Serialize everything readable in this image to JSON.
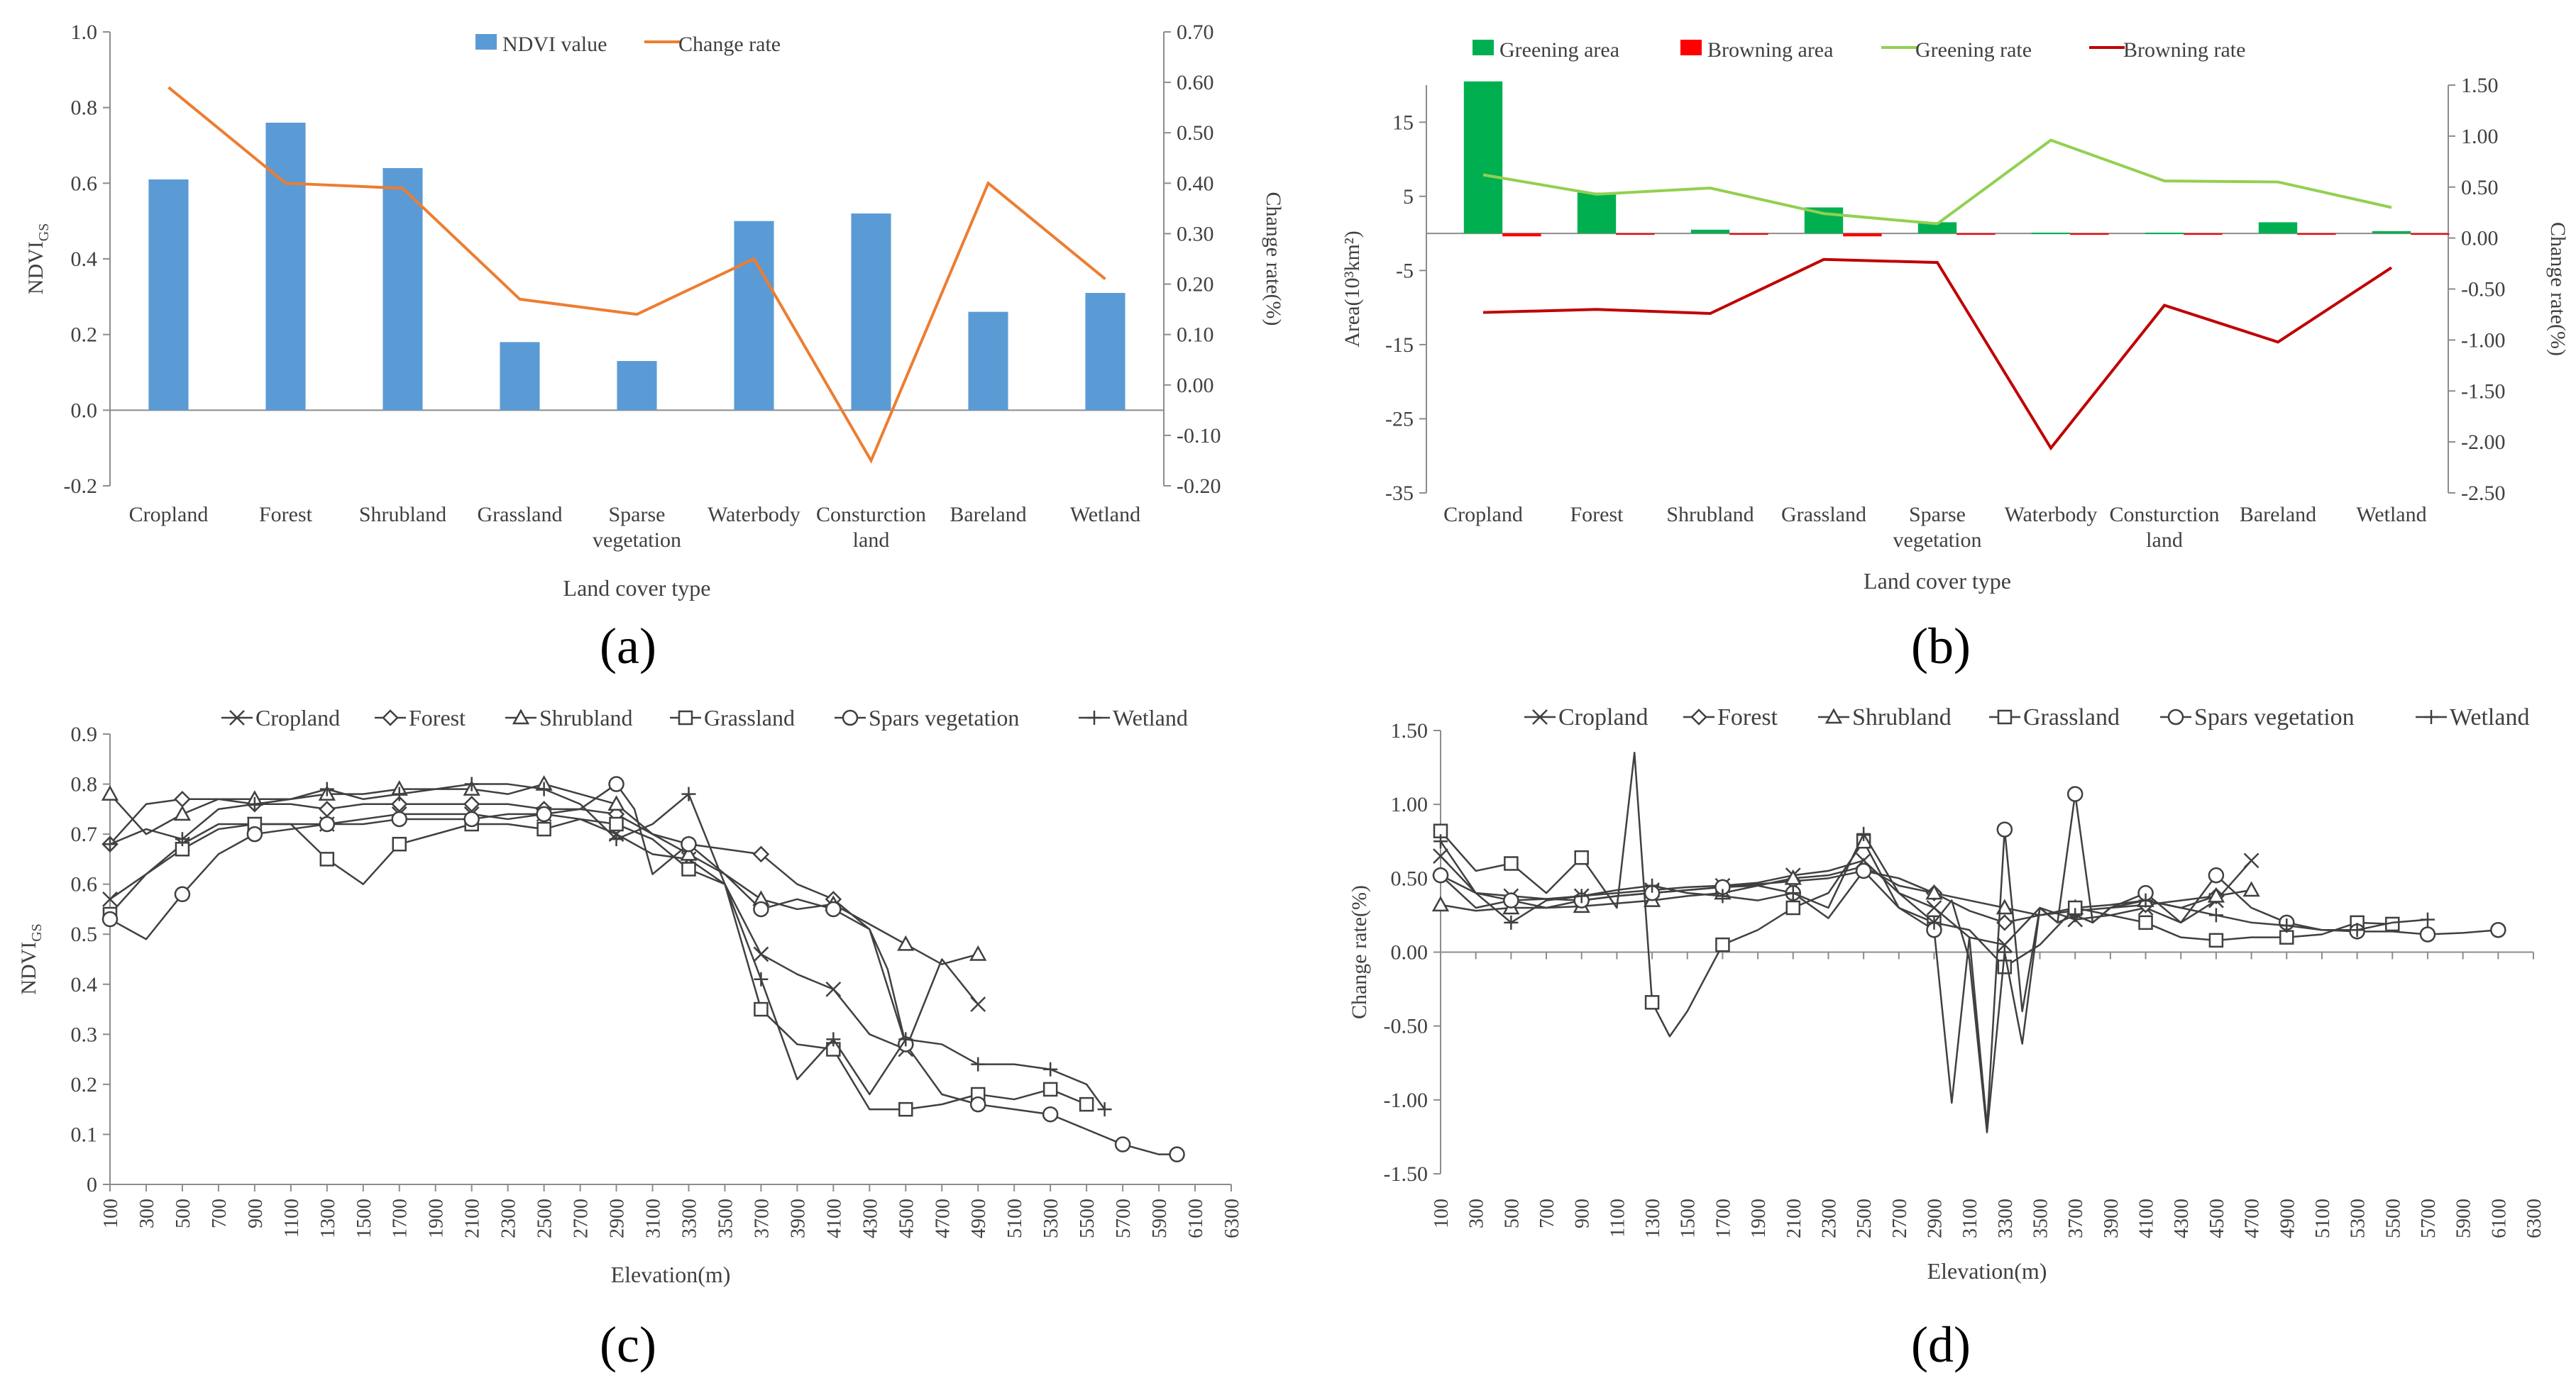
{
  "panel_labels": [
    "(a)",
    "(b)",
    "(c)",
    "(d)"
  ],
  "chart_data": [
    {
      "id": "a",
      "type": "bar",
      "xlabel": "Land cover type",
      "ylabel": "NDVI",
      "ylabel_sub": "GS",
      "y2label": "Change rate(%)",
      "categories": [
        "Cropland",
        "Forest",
        "Shrubland",
        "Grassland",
        "Sparse vegetation",
        "Waterbody",
        "Consturction land",
        "Bareland",
        "Wetland"
      ],
      "ylim": [
        -0.2,
        1.0
      ],
      "yticks": [
        "-0.2",
        "0.0",
        "0.2",
        "0.4",
        "0.6",
        "0.8",
        "1.0"
      ],
      "y2lim": [
        -0.2,
        0.7
      ],
      "y2ticks": [
        "-0.20",
        "-0.10",
        "0.00",
        "0.10",
        "0.20",
        "0.30",
        "0.40",
        "0.50",
        "0.60",
        "0.70"
      ],
      "legend_position": "top",
      "series": [
        {
          "name": "NDVI value",
          "kind": "bar",
          "axis": "left",
          "color": "#5b9bd5",
          "values": [
            0.61,
            0.76,
            0.64,
            0.18,
            0.13,
            0.5,
            0.52,
            0.26,
            0.31
          ]
        },
        {
          "name": "Change rate",
          "kind": "line",
          "axis": "right",
          "color": "#ed7d31",
          "values": [
            0.59,
            0.4,
            0.39,
            0.17,
            0.14,
            0.25,
            -0.15,
            0.4,
            0.21
          ]
        }
      ]
    },
    {
      "id": "b",
      "type": "bar",
      "xlabel": "Land cover type",
      "ylabel": "Area(10³km²)",
      "y2label": "Change rate(%)",
      "categories": [
        "Cropland",
        "Forest",
        "Shrubland",
        "Grassland",
        "Sparse vegetation",
        "Waterbody",
        "Consturction land",
        "Bareland",
        "Wetland"
      ],
      "ylim": [
        -35,
        20
      ],
      "yticks": [
        "-35",
        "-25",
        "-15",
        "-5",
        "5",
        "15"
      ],
      "y2lim": [
        -2.5,
        1.5
      ],
      "y2ticks": [
        "-2.50",
        "-2.00",
        "-1.50",
        "-1.00",
        "-0.50",
        "0.00",
        "0.50",
        "1.00",
        "1.50"
      ],
      "legend_position": "top",
      "series": [
        {
          "name": "Greening area",
          "kind": "bar",
          "axis": "left",
          "color": "#00b050",
          "values": [
            20.5,
            5.5,
            0.5,
            3.5,
            1.5,
            0.1,
            0.1,
            1.5,
            0.3
          ]
        },
        {
          "name": "Browning area",
          "kind": "bar",
          "axis": "left",
          "color": "#ff0000",
          "values": [
            -0.4,
            -0.1,
            -0.1,
            -0.4,
            -0.1,
            -0.1,
            -0.05,
            -0.05,
            -0.05
          ]
        },
        {
          "name": "Greening rate",
          "kind": "line",
          "axis": "right",
          "color": "#92d050",
          "values": [
            0.62,
            0.43,
            0.49,
            0.24,
            0.14,
            0.96,
            0.56,
            0.55,
            0.3
          ]
        },
        {
          "name": "Browning rate",
          "kind": "line",
          "axis": "right",
          "color": "#c00000",
          "values": [
            -0.73,
            -0.7,
            -0.74,
            -0.21,
            -0.24,
            -2.06,
            -0.66,
            -1.02,
            -0.29
          ]
        }
      ]
    },
    {
      "id": "c",
      "type": "line",
      "xlabel": "Elevation(m)",
      "ylabel": "NDVI",
      "ylabel_sub": "GS",
      "xlim": [
        100,
        6300
      ],
      "xticks": [
        "100",
        "300",
        "500",
        "700",
        "900",
        "1100",
        "1300",
        "1500",
        "1700",
        "1900",
        "2100",
        "2300",
        "2500",
        "2700",
        "2900",
        "3100",
        "3300",
        "3500",
        "3700",
        "3900",
        "4100",
        "4300",
        "4500",
        "4700",
        "4900",
        "5100",
        "5300",
        "5500",
        "5700",
        "5900",
        "6100",
        "6300"
      ],
      "ylim": [
        0,
        0.9
      ],
      "yticks": [
        "0",
        "0.1",
        "0.2",
        "0.3",
        "0.4",
        "0.5",
        "0.6",
        "0.7",
        "0.8",
        "0.9"
      ],
      "legend_position": "top",
      "marker_every": 400,
      "series": [
        {
          "name": "Cropland",
          "marker": "x",
          "x": [
            100,
            300,
            500,
            700,
            900,
            1100,
            1300,
            1500,
            1700,
            1900,
            2100,
            2300,
            2500,
            2700,
            2900,
            3100,
            3300,
            3500,
            3700,
            3900,
            4100,
            4300,
            4500,
            4700,
            4900
          ],
          "y": [
            0.57,
            0.62,
            0.68,
            0.72,
            0.72,
            0.72,
            0.72,
            0.73,
            0.74,
            0.74,
            0.74,
            0.73,
            0.74,
            0.73,
            0.7,
            0.66,
            0.65,
            0.6,
            0.46,
            0.42,
            0.39,
            0.3,
            0.27,
            0.45,
            0.36
          ]
        },
        {
          "name": "Forest",
          "marker": "diamond",
          "x": [
            100,
            300,
            500,
            700,
            900,
            1100,
            1300,
            1500,
            1700,
            1900,
            2100,
            2300,
            2500,
            2700,
            2900,
            3100,
            3300,
            3500,
            3700,
            3900,
            4100,
            4300,
            4500
          ],
          "y": [
            0.68,
            0.76,
            0.77,
            0.77,
            0.76,
            0.76,
            0.75,
            0.76,
            0.76,
            0.76,
            0.76,
            0.76,
            0.75,
            0.75,
            0.74,
            0.7,
            0.68,
            0.67,
            0.66,
            0.6,
            0.57,
            0.51,
            0.28
          ]
        },
        {
          "name": "Shrubland",
          "marker": "triangle",
          "x": [
            100,
            300,
            500,
            700,
            900,
            1100,
            1300,
            1500,
            1700,
            1900,
            2100,
            2300,
            2500,
            2700,
            2900,
            3100,
            3300,
            3500,
            3700,
            3900,
            4100,
            4300,
            4500,
            4700,
            4900
          ],
          "y": [
            0.78,
            0.7,
            0.74,
            0.77,
            0.77,
            0.77,
            0.78,
            0.78,
            0.79,
            0.79,
            0.79,
            0.78,
            0.8,
            0.78,
            0.76,
            0.7,
            0.66,
            0.62,
            0.57,
            0.55,
            0.56,
            0.52,
            0.48,
            0.44,
            0.46
          ]
        },
        {
          "name": "Grassland",
          "marker": "square",
          "x": [
            100,
            300,
            500,
            700,
            900,
            1100,
            1300,
            1500,
            1700,
            1900,
            2100,
            2300,
            2500,
            2700,
            2900,
            3100,
            3300,
            3500,
            3700,
            3900,
            4100,
            4300,
            4500,
            4700,
            4900,
            5100,
            5300,
            5500
          ],
          "y": [
            0.54,
            0.62,
            0.67,
            0.71,
            0.72,
            0.72,
            0.65,
            0.6,
            0.68,
            0.7,
            0.72,
            0.72,
            0.71,
            0.73,
            0.72,
            0.69,
            0.63,
            0.6,
            0.35,
            0.28,
            0.27,
            0.15,
            0.15,
            0.16,
            0.18,
            0.17,
            0.19,
            0.16
          ]
        },
        {
          "name": "Spars vegetation",
          "marker": "circle",
          "x": [
            100,
            300,
            500,
            700,
            900,
            1100,
            1300,
            1500,
            1700,
            1900,
            2100,
            2300,
            2500,
            2700,
            2900,
            3000,
            3100,
            3300,
            3500,
            3700,
            3900,
            4100,
            4300,
            4400,
            4500,
            4700,
            4900,
            5100,
            5300,
            5500,
            5700,
            5900,
            6000
          ],
          "y": [
            0.53,
            0.49,
            0.58,
            0.66,
            0.7,
            0.71,
            0.72,
            0.72,
            0.73,
            0.73,
            0.73,
            0.74,
            0.74,
            0.75,
            0.8,
            0.75,
            0.62,
            0.68,
            0.62,
            0.55,
            0.57,
            0.55,
            0.51,
            0.43,
            0.28,
            0.18,
            0.16,
            0.15,
            0.14,
            0.11,
            0.08,
            0.06,
            0.06
          ]
        },
        {
          "name": "Wetland",
          "marker": "plus",
          "x": [
            100,
            300,
            500,
            700,
            900,
            1100,
            1300,
            1500,
            1700,
            1900,
            2100,
            2300,
            2500,
            2700,
            2900,
            3100,
            3300,
            3500,
            3700,
            3900,
            4100,
            4300,
            4500,
            4700,
            4900,
            5100,
            5300,
            5500,
            5600
          ],
          "y": [
            0.68,
            0.71,
            0.69,
            0.75,
            0.76,
            0.77,
            0.79,
            0.77,
            0.78,
            0.79,
            0.8,
            0.8,
            0.79,
            0.76,
            0.69,
            0.72,
            0.78,
            0.6,
            0.41,
            0.21,
            0.29,
            0.18,
            0.29,
            0.28,
            0.24,
            0.24,
            0.23,
            0.2,
            0.15
          ]
        }
      ]
    },
    {
      "id": "d",
      "type": "line",
      "xlabel": "Elevation(m)",
      "ylabel": "Change rate(%)",
      "xlim": [
        100,
        6300
      ],
      "xticks": [
        "100",
        "300",
        "500",
        "700",
        "900",
        "1100",
        "1300",
        "1500",
        "1700",
        "1900",
        "2100",
        "2300",
        "2500",
        "2700",
        "2900",
        "3100",
        "3300",
        "3500",
        "3700",
        "3900",
        "4100",
        "4300",
        "4500",
        "4700",
        "4900",
        "5100",
        "5300",
        "5500",
        "5700",
        "5900",
        "6100",
        "6300"
      ],
      "ylim": [
        -1.5,
        1.5
      ],
      "yticks": [
        "-1.50",
        "-1.00",
        "-0.50",
        "0.00",
        "0.50",
        "1.00",
        "1.50"
      ],
      "legend_position": "top",
      "marker_every": 400,
      "series": [
        {
          "name": "Cropland",
          "marker": "x",
          "x": [
            100,
            300,
            500,
            700,
            900,
            1100,
            1300,
            1500,
            1700,
            1900,
            2100,
            2300,
            2500,
            2700,
            2900,
            3100,
            3300,
            3500,
            3700,
            3900,
            4100,
            4300,
            4500,
            4700
          ],
          "y": [
            0.65,
            0.4,
            0.38,
            0.36,
            0.38,
            0.4,
            0.42,
            0.44,
            0.45,
            0.47,
            0.52,
            0.55,
            0.62,
            0.4,
            0.3,
            0.1,
            0.05,
            0.3,
            0.22,
            0.25,
            0.3,
            0.2,
            0.35,
            0.62
          ]
        },
        {
          "name": "Forest",
          "marker": "diamond",
          "x": [
            100,
            300,
            500,
            700,
            900,
            1100,
            1300,
            1500,
            1700,
            1900,
            2100,
            2300,
            2500,
            2700,
            2900,
            3100,
            3300,
            3500,
            3700,
            3900,
            4100,
            4300,
            4500
          ],
          "y": [
            0.52,
            0.3,
            0.35,
            0.36,
            0.35,
            0.38,
            0.4,
            0.42,
            0.44,
            0.46,
            0.48,
            0.5,
            0.55,
            0.5,
            0.4,
            0.28,
            0.2,
            0.25,
            0.28,
            0.3,
            0.32,
            0.35,
            0.38
          ]
        },
        {
          "name": "Shrubland",
          "marker": "triangle",
          "x": [
            100,
            300,
            500,
            700,
            900,
            1100,
            1300,
            1500,
            1700,
            1900,
            2100,
            2300,
            2500,
            2700,
            2900,
            3100,
            3300,
            3500,
            3700,
            3900,
            4100,
            4300,
            4500,
            4700
          ],
          "y": [
            0.32,
            0.28,
            0.3,
            0.3,
            0.31,
            0.33,
            0.35,
            0.38,
            0.4,
            0.45,
            0.5,
            0.52,
            0.58,
            0.45,
            0.4,
            0.35,
            0.3,
            0.25,
            0.3,
            0.32,
            0.35,
            0.3,
            0.38,
            0.42
          ]
        },
        {
          "name": "Grassland",
          "marker": "square",
          "x": [
            100,
            300,
            500,
            700,
            900,
            1100,
            1200,
            1300,
            1400,
            1500,
            1700,
            1900,
            2100,
            2300,
            2500,
            2700,
            2900,
            3100,
            3300,
            3500,
            3700,
            3900,
            4100,
            4300,
            4500,
            4700,
            4900,
            5100,
            5300,
            5500
          ],
          "y": [
            0.82,
            0.55,
            0.6,
            0.4,
            0.64,
            0.3,
            1.35,
            -0.34,
            -0.57,
            -0.4,
            0.05,
            0.15,
            0.3,
            0.4,
            0.75,
            0.3,
            0.2,
            0.15,
            -0.1,
            0.05,
            0.3,
            0.25,
            0.2,
            0.1,
            0.08,
            0.1,
            0.1,
            0.12,
            0.2,
            0.19
          ]
        },
        {
          "name": "Spars vegetation",
          "marker": "circle",
          "x": [
            100,
            300,
            500,
            700,
            900,
            1100,
            1300,
            1500,
            1700,
            1900,
            2100,
            2300,
            2500,
            2700,
            2900,
            3000,
            3100,
            3200,
            3300,
            3400,
            3500,
            3600,
            3700,
            3800,
            3900,
            4100,
            4300,
            4500,
            4700,
            4900,
            5100,
            5300,
            5500,
            5700,
            5900,
            6100
          ],
          "y": [
            0.52,
            0.4,
            0.35,
            0.3,
            0.35,
            0.38,
            0.4,
            0.42,
            0.44,
            0.45,
            0.4,
            0.23,
            0.55,
            0.3,
            0.15,
            -1.02,
            0.1,
            -1.18,
            0.83,
            -0.4,
            0.3,
            0.2,
            1.07,
            0.2,
            0.3,
            0.4,
            0.2,
            0.52,
            0.3,
            0.2,
            0.15,
            0.14,
            0.14,
            0.12,
            0.13,
            0.15
          ]
        },
        {
          "name": "Wetland",
          "marker": "plus",
          "x": [
            100,
            300,
            500,
            700,
            900,
            1100,
            1300,
            1500,
            1700,
            1900,
            2100,
            2300,
            2500,
            2700,
            2900,
            3000,
            3100,
            3200,
            3300,
            3400,
            3500,
            3600,
            3700,
            3800,
            3900,
            4100,
            4300,
            4500,
            4700,
            4900,
            5100,
            5300,
            5500,
            5700
          ],
          "y": [
            0.75,
            0.4,
            0.2,
            0.35,
            0.38,
            0.42,
            0.45,
            0.4,
            0.38,
            0.35,
            0.4,
            0.3,
            0.8,
            0.4,
            0.2,
            0.35,
            -0.05,
            -1.22,
            0.0,
            -0.62,
            0.3,
            0.2,
            0.25,
            0.2,
            0.3,
            0.35,
            0.3,
            0.25,
            0.2,
            0.18,
            0.15,
            0.15,
            0.2,
            0.22
          ]
        }
      ]
    }
  ]
}
